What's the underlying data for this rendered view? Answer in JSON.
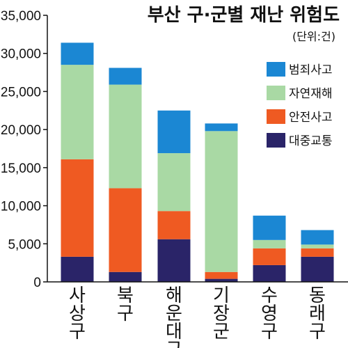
{
  "chart_data": {
    "type": "bar",
    "stacked": true,
    "title": "부산 구·군별 재난 위험도",
    "unit_label": "(단위:건)",
    "categories": [
      "사상구",
      "북구",
      "해운대구",
      "기장군",
      "수영구",
      "동래구"
    ],
    "series": [
      {
        "name": "대중교통",
        "color": "#2a2468",
        "values": [
          3300,
          1300,
          5600,
          400,
          2200,
          3300
        ]
      },
      {
        "name": "안전사고",
        "color": "#ef5a22",
        "values": [
          12800,
          11000,
          3700,
          900,
          2200,
          1100
        ]
      },
      {
        "name": "자연재해",
        "color": "#a9d9a4",
        "values": [
          12400,
          13600,
          7600,
          18500,
          1100,
          500
        ]
      },
      {
        "name": "범죄사고",
        "color": "#1b87d3",
        "values": [
          2900,
          2200,
          5600,
          1000,
          3200,
          1900
        ]
      }
    ],
    "legend_order": [
      "범죄사고",
      "자연재해",
      "안전사고",
      "대중교통"
    ],
    "legend_position": "top-right",
    "ylim": [
      0,
      35000
    ],
    "yticks": [
      "0",
      "5,000",
      "10,000",
      "15,000",
      "20,000",
      "25,000",
      "30,000",
      "35,000"
    ],
    "ytick_values": [
      0,
      5000,
      10000,
      15000,
      20000,
      25000,
      30000,
      35000
    ],
    "grid": false
  }
}
